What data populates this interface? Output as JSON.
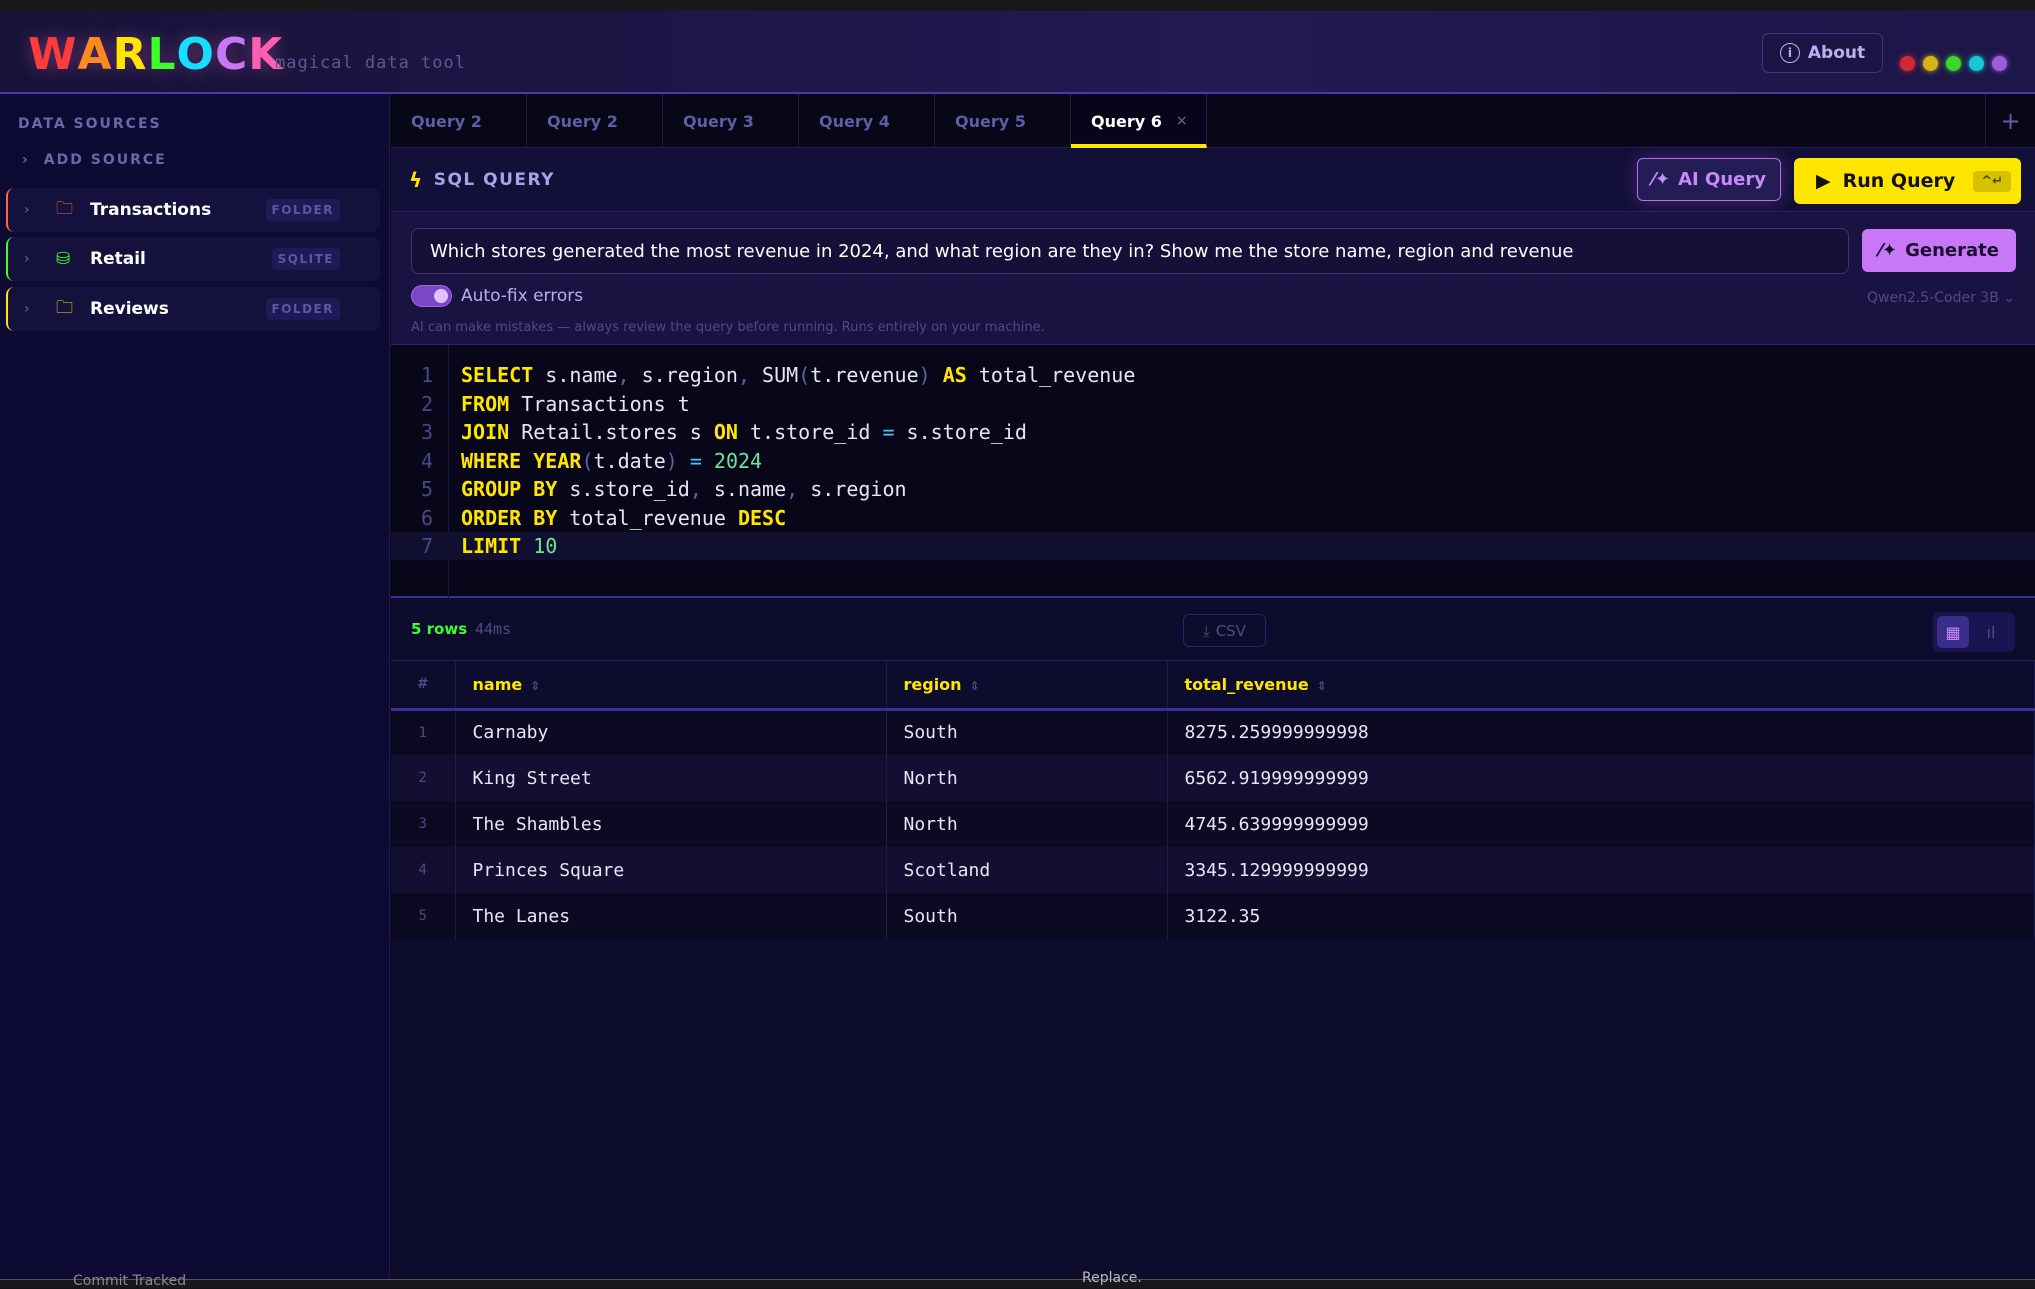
{
  "app": {
    "logo": "WARLOCK",
    "logo_colors": [
      "#ff3b3b",
      "#ff8a1f",
      "#ffe600",
      "#3dff2a",
      "#16e0ff",
      "#c878f7",
      "#ff5fb0"
    ],
    "tagline": "magical data tool",
    "about_label": "About",
    "about_icon": "info-icon",
    "theme_dots": [
      "#d0283a",
      "#d4b514",
      "#3fd42e",
      "#14c8d6",
      "#9a5fd6"
    ]
  },
  "sidebar": {
    "title": "DATA SOURCES",
    "add_source": "ADD SOURCE",
    "sources": [
      {
        "name": "Transactions",
        "type": "FOLDER",
        "icon": "folder-icon",
        "color": "#ff6a3a"
      },
      {
        "name": "Retail",
        "type": "SQLITE",
        "icon": "database-icon",
        "color": "#3dff2a"
      },
      {
        "name": "Reviews",
        "type": "FOLDER",
        "icon": "folder-icon",
        "color": "#ffe600"
      }
    ]
  },
  "tabs": [
    {
      "label": "Query 2"
    },
    {
      "label": "Query 2"
    },
    {
      "label": "Query 3"
    },
    {
      "label": "Query 4"
    },
    {
      "label": "Query 5"
    },
    {
      "label": "Query 6",
      "active": true
    }
  ],
  "toolbar": {
    "title": "SQL QUERY",
    "ai_query": "AI Query",
    "run_query": "Run Query",
    "run_shortcut": "^↵"
  },
  "ai": {
    "prompt": "Which stores generated the most revenue in 2024, and what region are they in? Show me the store name, region and revenue",
    "generate": "Generate",
    "autofix_label": "Auto-fix errors",
    "autofix_on": true,
    "disclaimer": "AI can make mistakes — always review the query before running. Runs entirely on your machine.",
    "model": "Qwen2.5-Coder 3B"
  },
  "editor": {
    "current_line": 7,
    "lines": [
      [
        [
          "kw",
          "SELECT"
        ],
        [
          "id",
          " s.name"
        ],
        [
          "pn",
          ","
        ],
        [
          "id",
          " s.region"
        ],
        [
          "pn",
          ","
        ],
        [
          "id",
          " SUM"
        ],
        [
          "pn",
          "("
        ],
        [
          "id",
          "t.revenue"
        ],
        [
          "pn",
          ")"
        ],
        [
          "id",
          " "
        ],
        [
          "kw",
          "AS"
        ],
        [
          "id",
          " total_revenue"
        ]
      ],
      [
        [
          "kw",
          "FROM"
        ],
        [
          "id",
          " Transactions t"
        ]
      ],
      [
        [
          "kw",
          "JOIN"
        ],
        [
          "id",
          " Retail.stores s "
        ],
        [
          "kw",
          "ON"
        ],
        [
          "id",
          " t.store_id "
        ],
        [
          "op",
          "="
        ],
        [
          "id",
          " s.store_id"
        ]
      ],
      [
        [
          "kw",
          "WHERE"
        ],
        [
          "id",
          " "
        ],
        [
          "kw",
          "YEAR"
        ],
        [
          "pn",
          "("
        ],
        [
          "id",
          "t.date"
        ],
        [
          "pn",
          ")"
        ],
        [
          "id",
          " "
        ],
        [
          "op",
          "="
        ],
        [
          "id",
          " "
        ],
        [
          "num",
          "2024"
        ]
      ],
      [
        [
          "kw",
          "GROUP BY"
        ],
        [
          "id",
          " s.store_id"
        ],
        [
          "pn",
          ","
        ],
        [
          "id",
          " s.name"
        ],
        [
          "pn",
          ","
        ],
        [
          "id",
          " s.region"
        ]
      ],
      [
        [
          "kw",
          "ORDER BY"
        ],
        [
          "id",
          " total_revenue "
        ],
        [
          "kw",
          "DESC"
        ]
      ],
      [
        [
          "kw",
          "LIMIT"
        ],
        [
          "id",
          " "
        ],
        [
          "num",
          "10"
        ]
      ]
    ]
  },
  "results": {
    "row_count": "5 rows",
    "time": "44ms",
    "csv": "CSV",
    "columns": [
      "#",
      "name",
      "region",
      "total_revenue"
    ],
    "rows": [
      [
        "1",
        "Carnaby",
        "South",
        "8275.259999999998"
      ],
      [
        "2",
        "King Street",
        "North",
        "6562.919999999999"
      ],
      [
        "3",
        "The Shambles",
        "North",
        "4745.639999999999"
      ],
      [
        "4",
        "Princes Square",
        "Scotland",
        "3345.129999999999"
      ],
      [
        "5",
        "The Lanes",
        "South",
        "3122.35"
      ]
    ]
  },
  "background": {
    "text1": "Commit Tracked",
    "text2": "Replace."
  }
}
